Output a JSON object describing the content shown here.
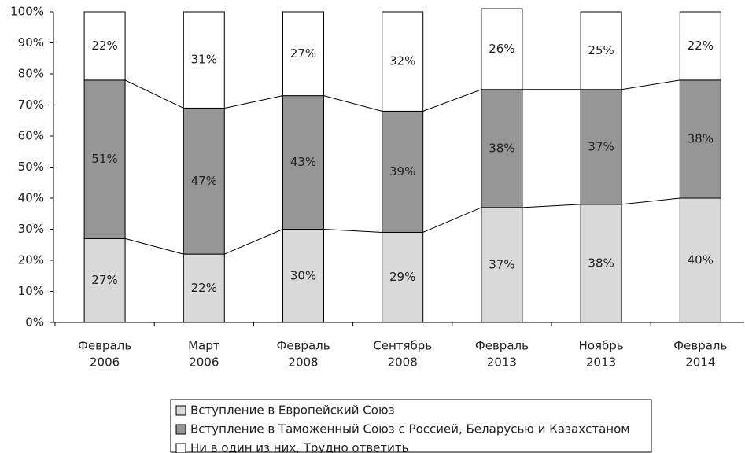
{
  "chart_data": {
    "type": "stacked_bar",
    "categories": [
      [
        "Февраль",
        "2006"
      ],
      [
        "Март",
        "2006"
      ],
      [
        "Февраль",
        "2008"
      ],
      [
        "Сентябрь",
        "2008"
      ],
      [
        "Февраль",
        "2013"
      ],
      [
        "Ноябрь",
        "2013"
      ],
      [
        "Февраль",
        "2014"
      ]
    ],
    "series": [
      {
        "name": "Вступление в Европейский Союз",
        "color": "#d9d9d9",
        "values": [
          27,
          22,
          30,
          29,
          37,
          38,
          40
        ],
        "value_labels": [
          "27%",
          "22%",
          "30%",
          "29%",
          "37%",
          "38%",
          "40%"
        ]
      },
      {
        "name": "Вступление в Таможенный Союз с Россией, Беларусью и Казахстаном",
        "color": "#969696",
        "values": [
          51,
          47,
          43,
          39,
          38,
          37,
          38
        ],
        "value_labels": [
          "51%",
          "47%",
          "43%",
          "39%",
          "38%",
          "37%",
          "38%"
        ]
      },
      {
        "name": "Ни в один из них, Трудно ответить",
        "color": "#ffffff",
        "values": [
          22,
          31,
          27,
          32,
          26,
          25,
          22
        ],
        "value_labels": [
          "22%",
          "31%",
          "27%",
          "32%",
          "26%",
          "25%",
          "22%"
        ]
      }
    ],
    "ylim": [
      0,
      100
    ],
    "yticks": [
      {
        "value": 0,
        "label": "0%"
      },
      {
        "value": 10,
        "label": "10%"
      },
      {
        "value": 20,
        "label": "20%"
      },
      {
        "value": 30,
        "label": "30%"
      },
      {
        "value": 40,
        "label": "40%"
      },
      {
        "value": 50,
        "label": "50%"
      },
      {
        "value": 60,
        "label": "60%"
      },
      {
        "value": 70,
        "label": "70%"
      },
      {
        "value": 80,
        "label": "80%"
      },
      {
        "value": 90,
        "label": "90%"
      },
      {
        "value": 100,
        "label": "100%"
      }
    ],
    "legend": "bottom"
  }
}
